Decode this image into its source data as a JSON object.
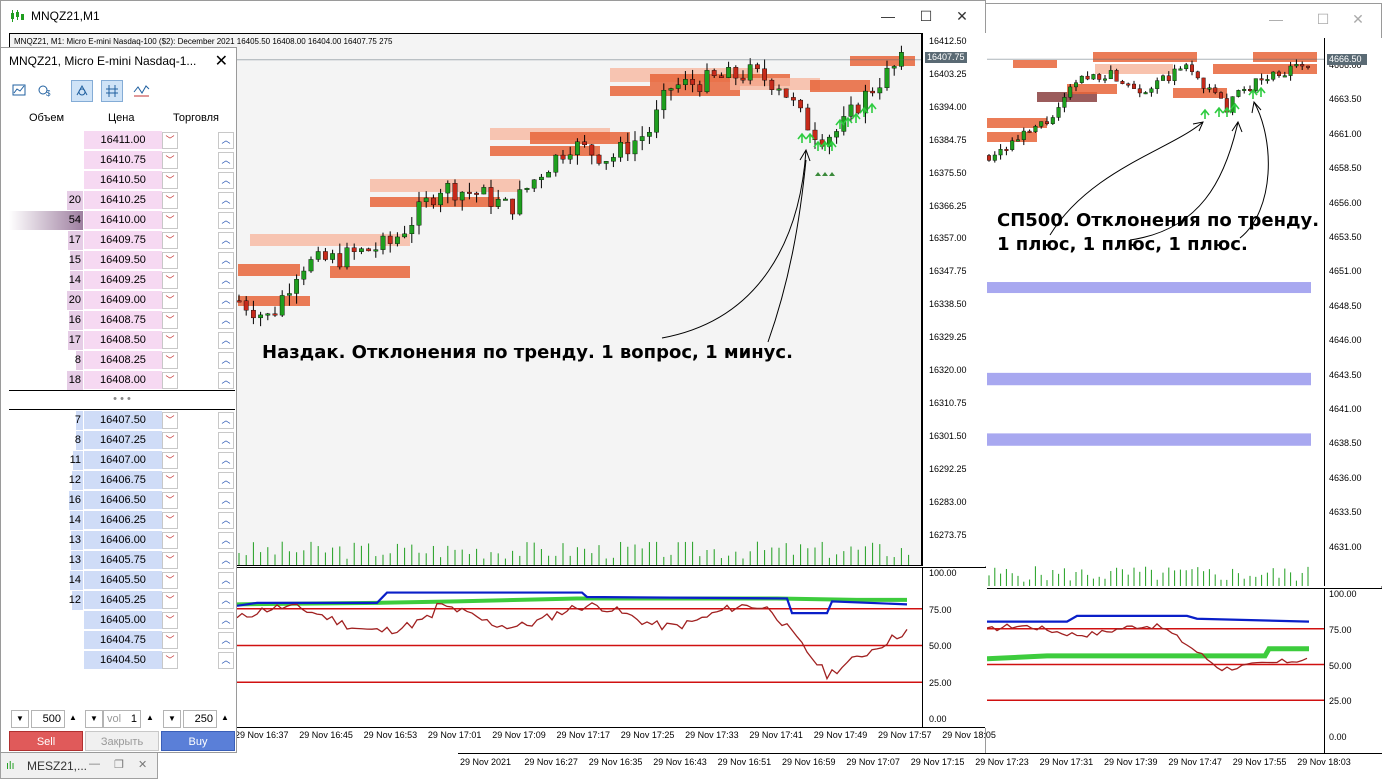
{
  "colors": {
    "bull": "#1f9e1f",
    "bear": "#c62a1a",
    "zone_dark": "#e8653a",
    "zone_light": "#f7b8a0",
    "zone_maroon": "#8a4040",
    "blue_line": "#0a1fc8",
    "green_line": "#3dcc3d",
    "red_line": "#d01010",
    "osc": "#a02020",
    "blue_band": "#a8a8f0",
    "arrow_green": "#2ecc40",
    "ask": "#f6d9f2",
    "bid": "#cfdcf7"
  },
  "window_main": {
    "title": "MNQZ21,M1",
    "icon": "candles-icon",
    "minimize": "—",
    "maximize": "☐",
    "close": "✕"
  },
  "window_right": {
    "minimize": "—",
    "maximize": "☐",
    "close": "✕"
  },
  "bg_window": {
    "title": "MESZ21,..."
  },
  "chart_info": "MNQZ21, M1:  Micro E-mini Nasdaq-100 ($2): December 2021   16405.50  16408.00  16404.00  16407.75   275",
  "note_left": "Наздак. Отклонения по тренду. 1 вопрос, 1 минус.",
  "note_right_line1": "СП500. Отклонения по тренду.",
  "note_right_line2": "1 плюс, 1 плюс, 1 плюс.",
  "dom": {
    "title": "MNQZ21, Micro E-mini Nasdaq-1...",
    "close": "✕",
    "headers": {
      "volume": "Объем",
      "price": "Цена",
      "trade": "Торговля"
    },
    "ask_rows": [
      {
        "vol": "",
        "price": "16411.00",
        "bar": 0
      },
      {
        "vol": "",
        "price": "16410.75",
        "bar": 0
      },
      {
        "vol": "",
        "price": "16410.50",
        "bar": 0
      },
      {
        "vol": "20",
        "price": "16410.25",
        "bar": 0.22
      },
      {
        "vol": "54",
        "price": "16410.00",
        "bar": 1.0
      },
      {
        "vol": "17",
        "price": "16409.75",
        "bar": 0.2
      },
      {
        "vol": "15",
        "price": "16409.50",
        "bar": 0.18
      },
      {
        "vol": "14",
        "price": "16409.25",
        "bar": 0.17
      },
      {
        "vol": "20",
        "price": "16409.00",
        "bar": 0.22
      },
      {
        "vol": "16",
        "price": "16408.75",
        "bar": 0.19
      },
      {
        "vol": "17",
        "price": "16408.50",
        "bar": 0.2
      },
      {
        "vol": "8",
        "price": "16408.25",
        "bar": 0.1
      },
      {
        "vol": "18",
        "price": "16408.00",
        "bar": 0.21
      }
    ],
    "separator": "• • •",
    "bid_rows": [
      {
        "vol": "7",
        "price": "16407.50",
        "bar": 0.09
      },
      {
        "vol": "8",
        "price": "16407.25",
        "bar": 0.1
      },
      {
        "vol": "11",
        "price": "16407.00",
        "bar": 0.14
      },
      {
        "vol": "12",
        "price": "16406.75",
        "bar": 0.15
      },
      {
        "vol": "16",
        "price": "16406.50",
        "bar": 0.19
      },
      {
        "vol": "14",
        "price": "16406.25",
        "bar": 0.17
      },
      {
        "vol": "13",
        "price": "16406.00",
        "bar": 0.16
      },
      {
        "vol": "13",
        "price": "16405.75",
        "bar": 0.16
      },
      {
        "vol": "14",
        "price": "16405.50",
        "bar": 0.17
      },
      {
        "vol": "12",
        "price": "16405.25",
        "bar": 0.15
      },
      {
        "vol": "",
        "price": "16405.00",
        "bar": 0
      },
      {
        "vol": "",
        "price": "16404.75",
        "bar": 0
      },
      {
        "vol": "",
        "price": "16404.50",
        "bar": 0
      }
    ],
    "qty_left": "500",
    "vol_label": "vol",
    "vol_value": "1",
    "qty_right": "250",
    "sell": "Sell",
    "close_pos": "Закрыть",
    "buy": "Buy"
  },
  "left_axis": [
    "16412.50",
    "16403.25",
    "16394.00",
    "16384.75",
    "16375.50",
    "16366.25",
    "16357.00",
    "16347.75",
    "16338.50",
    "16329.25",
    "16320.00",
    "16310.75",
    "16301.50",
    "16292.25",
    "16283.00",
    "16273.75"
  ],
  "left_price_tag": "16407.75",
  "left_osc_axis": [
    "100.00",
    "75.00",
    "50.00",
    "25.00",
    "0.00"
  ],
  "left_time": [
    "29 Nov 16:37",
    "29 Nov 16:45",
    "29 Nov 16:53",
    "29 Nov 17:01",
    "29 Nov 17:09",
    "29 Nov 17:17",
    "29 Nov 17:25",
    "29 Nov 17:33",
    "29 Nov 17:41",
    "29 Nov 17:49",
    "29 Nov 17:57",
    "29 Nov 18:05"
  ],
  "right_axis": [
    "4666.00",
    "4663.50",
    "4661.00",
    "4658.50",
    "4656.00",
    "4653.50",
    "4651.00",
    "4648.50",
    "4646.00",
    "4643.50",
    "4641.00",
    "4638.50",
    "4636.00",
    "4633.50",
    "4631.00"
  ],
  "right_price_tag": "4666.50",
  "right_osc_axis": [
    "100.00",
    "75.00",
    "50.00",
    "25.00",
    "0.00"
  ],
  "right_time": [
    "29 Nov 2021",
    "29 Nov 16:27",
    "29 Nov 16:35",
    "29 Nov 16:43",
    "29 Nov 16:51",
    "29 Nov 16:59",
    "29 Nov 17:07",
    "29 Nov 17:15",
    "29 Nov 17:23",
    "29 Nov 17:31",
    "29 Nov 17:39",
    "29 Nov 17:47",
    "29 Nov 17:55",
    "29 Nov 18:03"
  ]
}
